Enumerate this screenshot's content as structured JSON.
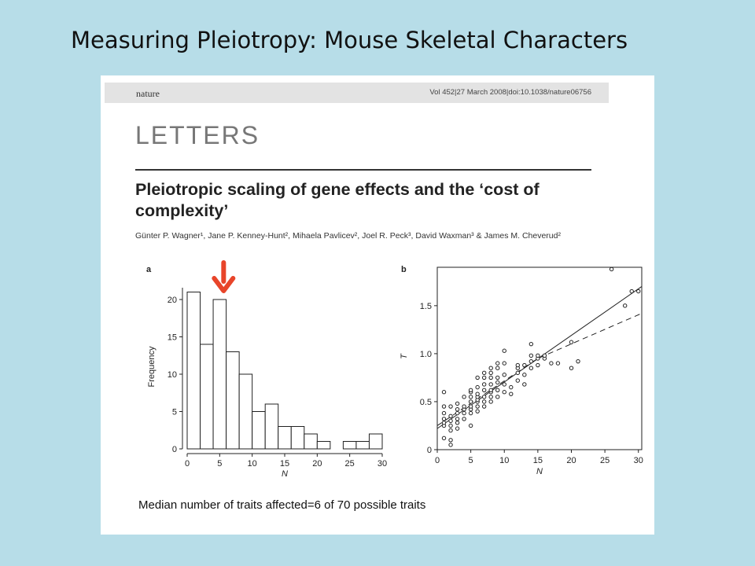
{
  "slide_title": "Measuring Pleiotropy: Mouse Skeletal Characters",
  "journal": {
    "name": "nature",
    "reference": "Vol 452|27 March 2008|doi:10.1038/nature06756"
  },
  "section_label": "LETTERS",
  "paper_title": "Pleiotropic scaling of gene effects and the ‘cost of complexity’",
  "authors": "Günter P. Wagner¹, Jane P. Kenney-Hunt², Mihaela Pavlicev², Joel R. Peck³, David Waxman³ & James M. Cheverud²",
  "caption": "Median number of traits affected=6 of 70 possible traits",
  "annotation_color": "#e8452a",
  "chart_data": [
    {
      "type": "bar",
      "panel_label": "a",
      "xlabel": "N",
      "ylabel": "Frequency",
      "bin_width": 2,
      "x": [
        0,
        2,
        4,
        6,
        8,
        10,
        12,
        14,
        16,
        18,
        20,
        22,
        24,
        26,
        28
      ],
      "values": [
        21,
        14,
        20,
        13,
        10,
        5,
        6,
        3,
        3,
        2,
        1,
        0,
        1,
        1,
        2
      ],
      "xlim": [
        0,
        30
      ],
      "ylim": [
        0,
        22
      ],
      "xticks": [
        0,
        5,
        10,
        15,
        20,
        25,
        30
      ],
      "yticks": [
        0,
        5,
        10,
        15,
        20
      ],
      "annotation": {
        "type": "arrow",
        "x": 5,
        "icon": "down-arrow-icon"
      }
    },
    {
      "type": "scatter",
      "panel_label": "b",
      "xlabel": "N",
      "ylabel": "T",
      "xlim": [
        0,
        30.5
      ],
      "ylim": [
        0,
        1.9
      ],
      "xticks": [
        0,
        5,
        10,
        15,
        20,
        25,
        30
      ],
      "yticks": [
        0,
        0.5,
        1.0,
        1.5
      ],
      "ytick_labels": [
        "0",
        "0.5",
        "1.0",
        "1.5"
      ],
      "points": [
        [
          1,
          0.12
        ],
        [
          1,
          0.25
        ],
        [
          1,
          0.28
        ],
        [
          1,
          0.32
        ],
        [
          1,
          0.38
        ],
        [
          1,
          0.45
        ],
        [
          1,
          0.6
        ],
        [
          2,
          0.05
        ],
        [
          2,
          0.1
        ],
        [
          2,
          0.2
        ],
        [
          2,
          0.25
        ],
        [
          2,
          0.3
        ],
        [
          2,
          0.35
        ],
        [
          2,
          0.45
        ],
        [
          3,
          0.22
        ],
        [
          3,
          0.28
        ],
        [
          3,
          0.32
        ],
        [
          3,
          0.38
        ],
        [
          3,
          0.42
        ],
        [
          3,
          0.48
        ],
        [
          4,
          0.32
        ],
        [
          4,
          0.38
        ],
        [
          4,
          0.42
        ],
        [
          4,
          0.45
        ],
        [
          4,
          0.55
        ],
        [
          5,
          0.25
        ],
        [
          5,
          0.38
        ],
        [
          5,
          0.42
        ],
        [
          5,
          0.45
        ],
        [
          5,
          0.5
        ],
        [
          5,
          0.55
        ],
        [
          5,
          0.6
        ],
        [
          5,
          0.62
        ],
        [
          6,
          0.4
        ],
        [
          6,
          0.45
        ],
        [
          6,
          0.5
        ],
        [
          6,
          0.52
        ],
        [
          6,
          0.55
        ],
        [
          6,
          0.58
        ],
        [
          6,
          0.65
        ],
        [
          6,
          0.75
        ],
        [
          7,
          0.45
        ],
        [
          7,
          0.5
        ],
        [
          7,
          0.55
        ],
        [
          7,
          0.62
        ],
        [
          7,
          0.68
        ],
        [
          7,
          0.75
        ],
        [
          7,
          0.8
        ],
        [
          8,
          0.5
        ],
        [
          8,
          0.55
        ],
        [
          8,
          0.6
        ],
        [
          8,
          0.62
        ],
        [
          8,
          0.68
        ],
        [
          8,
          0.75
        ],
        [
          8,
          0.8
        ],
        [
          8,
          0.85
        ],
        [
          9,
          0.55
        ],
        [
          9,
          0.62
        ],
        [
          9,
          0.7
        ],
        [
          9,
          0.75
        ],
        [
          9,
          0.85
        ],
        [
          9,
          0.9
        ],
        [
          10,
          0.6
        ],
        [
          10,
          0.68
        ],
        [
          10,
          0.78
        ],
        [
          10,
          0.9
        ],
        [
          10,
          1.03
        ],
        [
          11,
          0.58
        ],
        [
          11,
          0.65
        ],
        [
          12,
          0.72
        ],
        [
          12,
          0.8
        ],
        [
          12,
          0.85
        ],
        [
          12,
          0.88
        ],
        [
          13,
          0.68
        ],
        [
          13,
          0.78
        ],
        [
          13,
          0.88
        ],
        [
          14,
          0.85
        ],
        [
          14,
          0.92
        ],
        [
          14,
          0.98
        ],
        [
          14,
          1.1
        ],
        [
          15,
          0.88
        ],
        [
          15,
          0.95
        ],
        [
          15,
          0.98
        ],
        [
          16,
          0.95
        ],
        [
          16,
          0.98
        ],
        [
          17,
          0.9
        ],
        [
          18,
          0.9
        ],
        [
          20,
          0.85
        ],
        [
          20,
          1.12
        ],
        [
          21,
          0.92
        ],
        [
          26,
          1.88
        ],
        [
          28,
          1.5
        ],
        [
          29,
          1.65
        ],
        [
          30,
          1.65
        ]
      ],
      "fit_lines": [
        {
          "style": "solid",
          "x": [
            0,
            30.5
          ],
          "y": [
            0.22,
            1.7
          ]
        },
        {
          "style": "dashed",
          "x": [
            0,
            15,
            30.5
          ],
          "y": [
            0.25,
            0.95,
            1.42
          ]
        }
      ]
    }
  ]
}
